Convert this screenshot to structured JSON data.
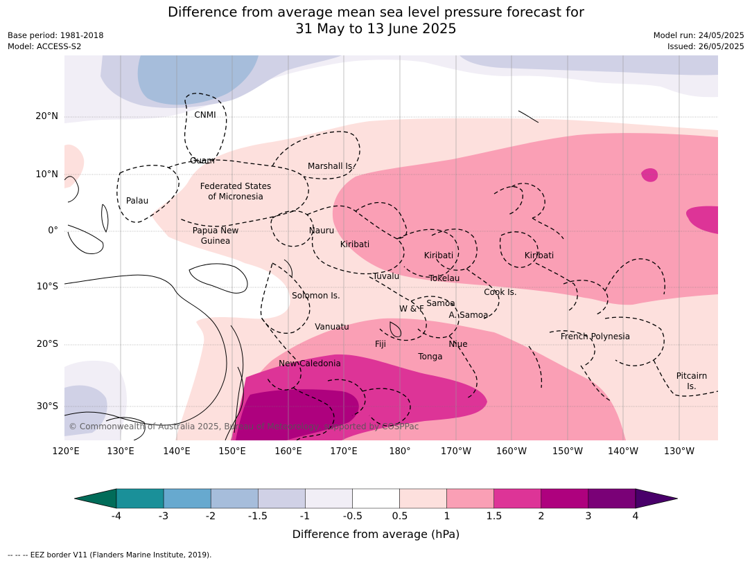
{
  "title_line1": "Difference from average mean sea level pressure forecast for",
  "title_line2": "31 May to 13 June 2025",
  "base_period": "Base period: 1981-2018",
  "model": "Model: ACCESS-S2",
  "model_run": "Model run: 24/05/2025",
  "issued": "Issued: 26/05/2025",
  "lat_ticks": [
    "20°N",
    "10°N",
    "0°",
    "10°S",
    "20°S",
    "30°S"
  ],
  "lon_ticks": [
    "120°E",
    "130°E",
    "140°E",
    "150°E",
    "160°E",
    "170°E",
    "180°",
    "170°W",
    "160°W",
    "150°W",
    "140°W",
    "130°W"
  ],
  "regions": {
    "cnmi": "CNMI",
    "guam": "Guam",
    "marshall": "Marshall Is.",
    "fsm_line1": "Federated States",
    "fsm_line2": "of Micronesia",
    "palau": "Palau",
    "png_line1": "Papua New",
    "png_line2": "Guinea",
    "nauru": "Nauru",
    "kiribati_west": "Kiribati",
    "kiribati_central": "Kiribati",
    "kiribati_east": "Kiribati",
    "tuvalu": "Tuvalu",
    "tokelau": "Tokelau",
    "cook": "Cook Is.",
    "solomon": "Solomon Is.",
    "samoa": "Samoa",
    "wallis_futuna": "W & F",
    "american_samoa": "A. Samoa",
    "vanuatu": "Vanuatu",
    "fiji": "Fiji",
    "niue": "Niue",
    "tonga": "Tonga",
    "french_polynesia": "French Polynesia",
    "new_caledonia": "New Caledonia",
    "pitcairn_line1": "Pitcairn",
    "pitcairn_line2": "Is."
  },
  "copyright": "© Commonwealth of Australia 2025, Bureau of Meteorology, supported by COSPPac",
  "colorbar": {
    "ticks": [
      "-4",
      "-3",
      "-2",
      "-1.5",
      "-1",
      "-0.5",
      "0.5",
      "1",
      "1.5",
      "2",
      "3",
      "4"
    ],
    "colors": [
      "#1a9099",
      "#67a9cf",
      "#a6bddb",
      "#d0d1e6",
      "#f1eef6",
      "#ffffff",
      "#fde0dd",
      "#fa9fb5",
      "#dd3497",
      "#ae017e",
      "#7a0177"
    ],
    "under_color": "#016c59",
    "over_color": "#49006a",
    "label": "Difference from average (hPa)"
  },
  "footnote": "--  --  -- EEZ border V11 (Flanders Marine Institute, 2019)."
}
